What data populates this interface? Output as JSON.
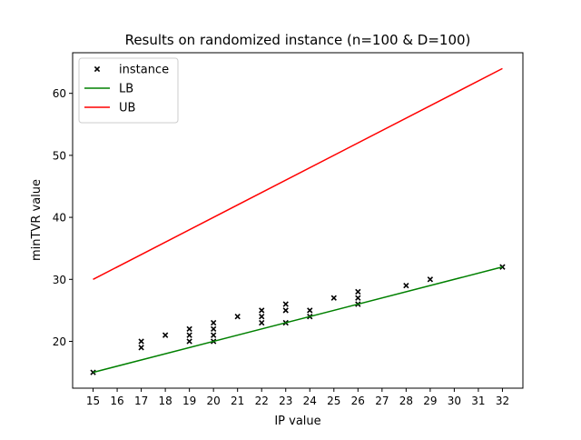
{
  "chart_data": {
    "type": "scatter",
    "title": "Results on randomized instance (n=100 & D=100)",
    "xlabel": "IP value",
    "ylabel": "minTVR value",
    "xlim": [
      14.15,
      32.85
    ],
    "ylim": [
      12.45,
      66.55
    ],
    "xticks": [
      15,
      16,
      17,
      18,
      19,
      20,
      21,
      22,
      23,
      24,
      25,
      26,
      27,
      28,
      29,
      30,
      31,
      32
    ],
    "yticks": [
      20,
      30,
      40,
      50,
      60
    ],
    "grid": false,
    "legend_position": "top-left",
    "series": [
      {
        "name": "instance",
        "kind": "scatter",
        "marker": "x",
        "color": "#000000",
        "points": [
          [
            15,
            15
          ],
          [
            17,
            19
          ],
          [
            17,
            20
          ],
          [
            18,
            21
          ],
          [
            19,
            20
          ],
          [
            19,
            21
          ],
          [
            19,
            22
          ],
          [
            20,
            20
          ],
          [
            20,
            21
          ],
          [
            20,
            22
          ],
          [
            20,
            23
          ],
          [
            21,
            24
          ],
          [
            22,
            23
          ],
          [
            22,
            24
          ],
          [
            22,
            25
          ],
          [
            23,
            23
          ],
          [
            23,
            25
          ],
          [
            23,
            26
          ],
          [
            24,
            24
          ],
          [
            24,
            25
          ],
          [
            25,
            27
          ],
          [
            26,
            26
          ],
          [
            26,
            27
          ],
          [
            26,
            28
          ],
          [
            28,
            29
          ],
          [
            29,
            30
          ],
          [
            32,
            32
          ]
        ]
      },
      {
        "name": "LB",
        "kind": "line",
        "color": "#008000",
        "points": [
          [
            15,
            15
          ],
          [
            32,
            32
          ]
        ]
      },
      {
        "name": "UB",
        "kind": "line",
        "color": "#ff0000",
        "points": [
          [
            15,
            30
          ],
          [
            32,
            64
          ]
        ]
      }
    ]
  }
}
